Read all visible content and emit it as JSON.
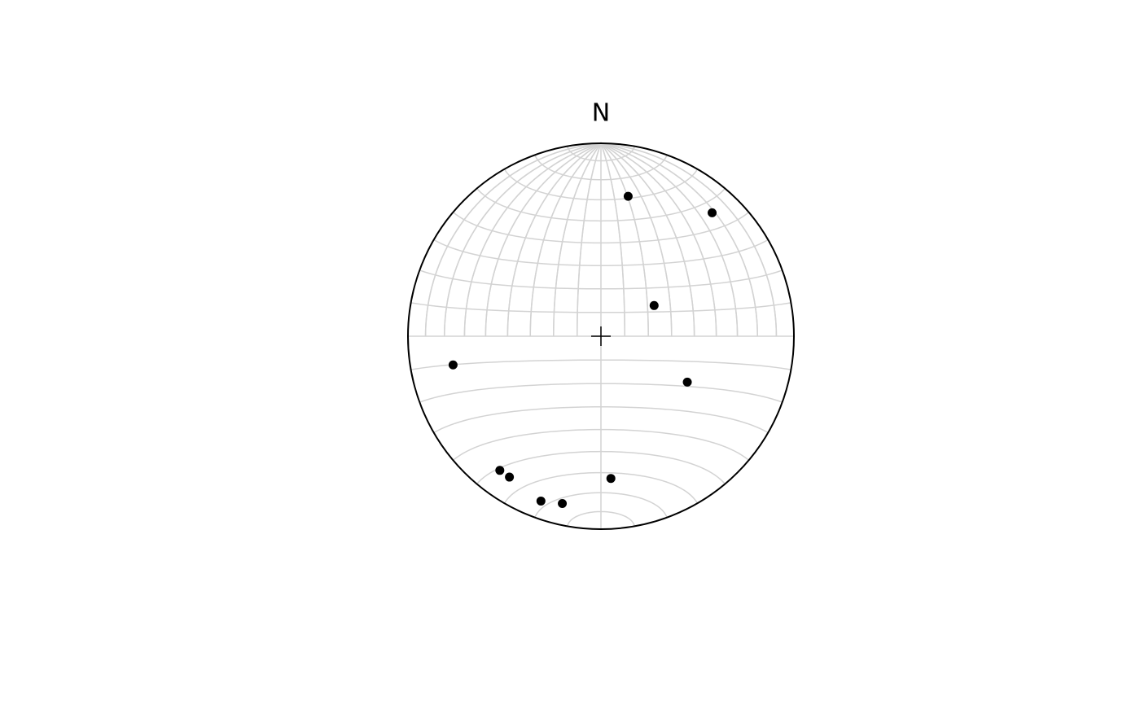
{
  "chart_data": {
    "type": "stereonet",
    "projection": "equal-area",
    "north_label": "N",
    "trends": [
      11,
      42,
      60,
      259,
      118,
      217,
      213,
      200,
      193,
      176
    ],
    "plunges": [
      27,
      15,
      64,
      23,
      48,
      14,
      14,
      10,
      12,
      27
    ],
    "color": "#000000",
    "grid": true,
    "grid_interval": 10,
    "grid_color": "#d3d3d3"
  }
}
